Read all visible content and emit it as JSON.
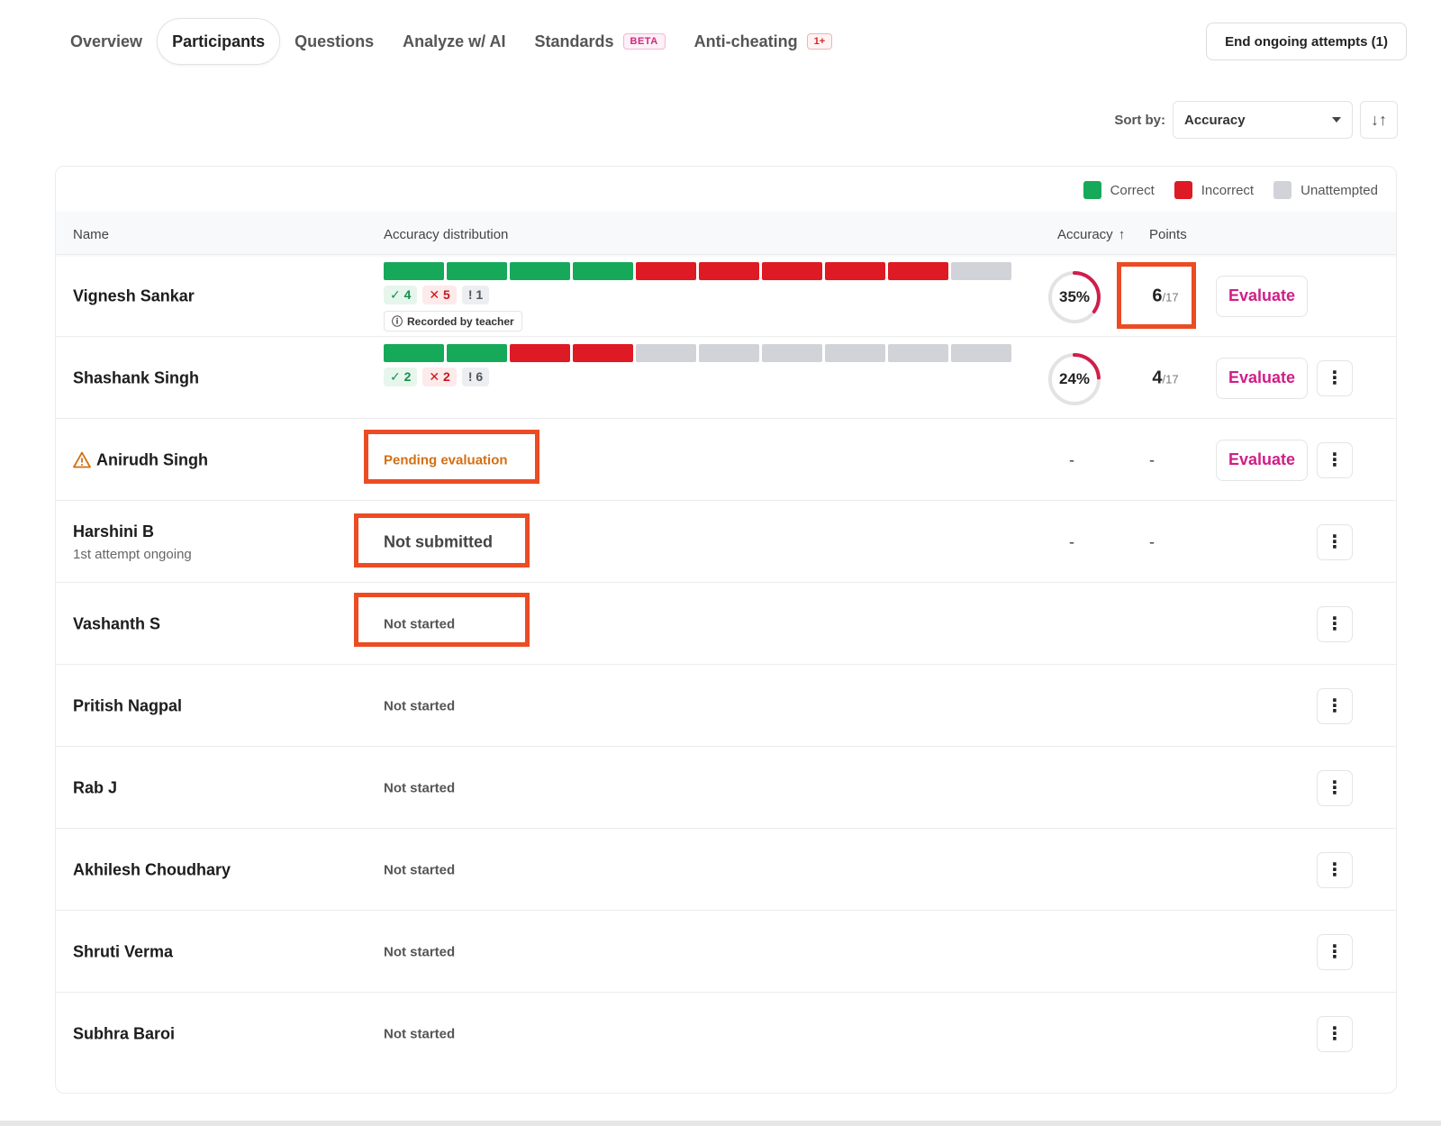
{
  "nav": {
    "tabs": [
      {
        "label": "Overview"
      },
      {
        "label": "Participants"
      },
      {
        "label": "Questions"
      },
      {
        "label": "Analyze w/ AI"
      },
      {
        "label": "Standards",
        "badge": "BETA"
      },
      {
        "label": "Anti-cheating",
        "badge": "1+"
      }
    ],
    "end_button": "End ongoing attempts (1)"
  },
  "sort": {
    "label": "Sort by:",
    "value": "Accuracy",
    "direction_icon": "sort-arrows-icon"
  },
  "legend": {
    "correct": "Correct",
    "incorrect": "Incorrect",
    "unattempted": "Unattempted"
  },
  "colors": {
    "correct": "#17a95a",
    "incorrect": "#de1a24",
    "unattempted": "#d2d3d8",
    "accent": "#d01e88",
    "highlight": "#ec4b23",
    "pending": "#d36f10"
  },
  "table": {
    "headers": {
      "name": "Name",
      "distribution": "Accuracy distribution",
      "accuracy": "Accuracy",
      "points": "Points"
    },
    "evaluate_label": "Evaluate",
    "more_label": "⋮",
    "rows": [
      {
        "name": "Vignesh Sankar",
        "segments": [
          "c",
          "c",
          "c",
          "c",
          "i",
          "i",
          "i",
          "i",
          "i",
          "u"
        ],
        "correct": "✓ 4",
        "incorrect": "✕ 5",
        "unattempted": "! 1",
        "note": "Recorded by teacher",
        "accuracy": "35%",
        "accuracy_value": 0.35,
        "points": "6",
        "points_total": "/17"
      },
      {
        "name": "Shashank Singh",
        "segments": [
          "c",
          "c",
          "i",
          "i",
          "u",
          "u",
          "u",
          "u",
          "u",
          "u"
        ],
        "correct": "✓ 2",
        "incorrect": "✕ 2",
        "unattempted": "! 6",
        "accuracy": "24%",
        "accuracy_value": 0.24,
        "points": "4",
        "points_total": "/17"
      },
      {
        "name": "Anirudh Singh",
        "status": "Pending evaluation",
        "accuracy": "-",
        "points": "-"
      },
      {
        "name": "Harshini B",
        "sub": "1st attempt ongoing",
        "status": "Not submitted",
        "accuracy": "-",
        "points": "-"
      },
      {
        "name": "Vashanth S",
        "status": "Not started"
      },
      {
        "name": "Pritish Nagpal",
        "status": "Not started"
      },
      {
        "name": "Rab J",
        "status": "Not started"
      },
      {
        "name": "Akhilesh Choudhary",
        "status": "Not started"
      },
      {
        "name": "Shruti Verma",
        "status": "Not started"
      },
      {
        "name": "Subhra Baroi",
        "status": "Not started"
      }
    ]
  }
}
